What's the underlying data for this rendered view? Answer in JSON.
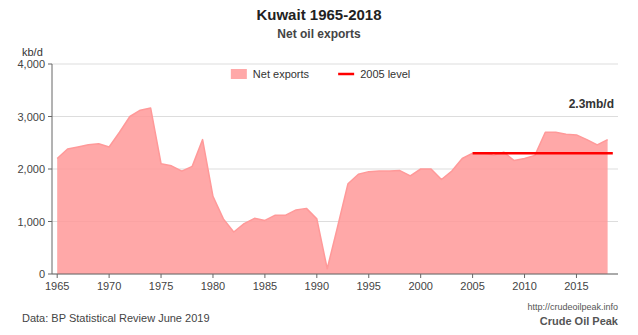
{
  "chart_data": {
    "type": "area",
    "title": "Kuwait 1965-2018",
    "subtitle": "Net oil exports",
    "ylabel": "kb/d",
    "annotations": [
      "2.3mb/d",
      "Data: BP Statistical Review June 2019",
      "http://crudeoilpeak.info",
      "Crude Oil Peak"
    ],
    "series": [
      {
        "name": "Net exports",
        "type": "area",
        "color": "#FF9999",
        "x": [
          1965,
          1966,
          1967,
          1968,
          1969,
          1970,
          1971,
          1972,
          1973,
          1974,
          1975,
          1976,
          1977,
          1978,
          1979,
          1980,
          1981,
          1982,
          1983,
          1984,
          1985,
          1986,
          1987,
          1988,
          1989,
          1990,
          1991,
          1992,
          1993,
          1994,
          1995,
          1996,
          1997,
          1998,
          1999,
          2000,
          2001,
          2002,
          2003,
          2004,
          2005,
          2006,
          2007,
          2008,
          2009,
          2010,
          2011,
          2012,
          2013,
          2014,
          2015,
          2016,
          2017,
          2018
        ],
        "values": [
          2200,
          2380,
          2420,
          2460,
          2480,
          2420,
          2700,
          3000,
          3120,
          3160,
          2100,
          2060,
          1960,
          2050,
          2560,
          1480,
          1050,
          800,
          960,
          1060,
          1020,
          1120,
          1120,
          1220,
          1250,
          1050,
          100,
          900,
          1720,
          1900,
          1950,
          1960,
          1960,
          1970,
          1870,
          2000,
          2000,
          1800,
          1960,
          2200,
          2300,
          2310,
          2260,
          2320,
          2160,
          2200,
          2260,
          2700,
          2700,
          2660,
          2650,
          2560,
          2460,
          2560
        ]
      },
      {
        "name": "2005 level",
        "type": "line",
        "color": "#FF0000",
        "x": [
          2005,
          2018.5
        ],
        "values": [
          2300,
          2300
        ]
      }
    ],
    "xlim": [
      1964.5,
      2019
    ],
    "xticks": [
      1965,
      1970,
      1975,
      1980,
      1985,
      1990,
      1995,
      2000,
      2005,
      2010,
      2015
    ],
    "ylim": [
      0,
      4000
    ],
    "yticks": [
      0,
      {
        "value": 1000,
        "label": "1,000"
      },
      {
        "value": 2000,
        "label": "2,000"
      },
      {
        "value": 3000,
        "label": "3,000"
      },
      {
        "value": 4000,
        "label": "4,000"
      }
    ],
    "grid": true,
    "legend": "top"
  }
}
